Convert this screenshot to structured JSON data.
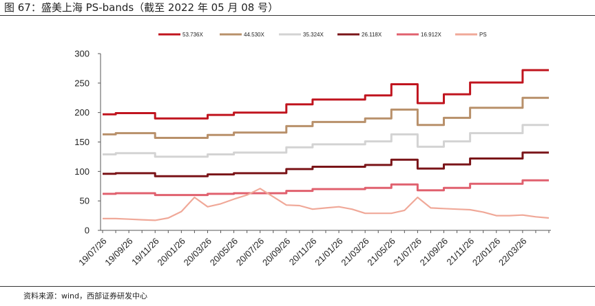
{
  "header": {
    "title": "图 67：盛美上海 PS-bands（截至 2022 年 05 月 08 号）"
  },
  "footer": {
    "source": "资料来源：wind，西部证券研发中心"
  },
  "chart_data": {
    "type": "line",
    "title": "",
    "xlabel": "",
    "ylabel": "",
    "ylim": [
      0,
      300
    ],
    "yticks": [
      0,
      50,
      100,
      150,
      200,
      250,
      300
    ],
    "grid": false,
    "legend_position": "top",
    "x": [
      "19/07/26",
      "19/08/26",
      "19/09/26",
      "19/10/26",
      "19/11/26",
      "19/12/26",
      "20/01/26",
      "20/02/26",
      "20/03/26",
      "20/04/26",
      "20/05/26",
      "20/06/26",
      "20/07/26",
      "20/08/26",
      "20/09/26",
      "20/10/26",
      "20/11/26",
      "20/12/26",
      "21/01/26",
      "21/02/26",
      "21/03/26",
      "21/04/26",
      "21/05/26",
      "21/06/26",
      "21/07/26",
      "21/08/26",
      "21/09/26",
      "21/10/26",
      "21/11/26",
      "21/12/26",
      "22/01/26",
      "22/02/26",
      "22/03/26",
      "22/04/26",
      "22/05/08"
    ],
    "xtick_labels": [
      "19/07/26",
      "19/09/26",
      "19/11/26",
      "20/01/26",
      "20/03/26",
      "20/05/26",
      "20/07/26",
      "20/09/26",
      "20/11/26",
      "21/01/26",
      "21/03/26",
      "21/05/26",
      "21/07/26",
      "21/09/26",
      "21/11/26",
      "22/01/26",
      "22/03/26"
    ],
    "series": [
      {
        "name": "53.736X",
        "color": "#c0141e",
        "step": true,
        "values": [
          197,
          199,
          199,
          199,
          190,
          190,
          190,
          190,
          196,
          196,
          200,
          200,
          200,
          200,
          214,
          214,
          222,
          222,
          222,
          222,
          229,
          229,
          248,
          248,
          216,
          216,
          231,
          231,
          251,
          251,
          251,
          251,
          272,
          272,
          272
        ]
      },
      {
        "name": "44.530X",
        "color": "#b8906a",
        "step": true,
        "values": [
          163,
          165,
          165,
          165,
          157,
          157,
          157,
          157,
          162,
          162,
          166,
          166,
          166,
          166,
          177,
          177,
          184,
          184,
          184,
          184,
          190,
          190,
          205,
          205,
          179,
          179,
          191,
          191,
          208,
          208,
          208,
          208,
          225,
          225,
          225
        ]
      },
      {
        "name": "35.324X",
        "color": "#d3d3d3",
        "step": true,
        "values": [
          129,
          131,
          131,
          131,
          125,
          125,
          125,
          125,
          129,
          129,
          132,
          132,
          132,
          132,
          141,
          141,
          146,
          146,
          146,
          146,
          151,
          151,
          163,
          163,
          142,
          142,
          151,
          151,
          165,
          165,
          165,
          165,
          179,
          179,
          179
        ]
      },
      {
        "name": "26.118X",
        "color": "#7a1418",
        "step": true,
        "values": [
          96,
          97,
          97,
          97,
          92,
          92,
          92,
          92,
          95,
          95,
          97,
          97,
          97,
          97,
          104,
          104,
          108,
          108,
          108,
          108,
          111,
          111,
          120,
          120,
          105,
          105,
          112,
          112,
          122,
          122,
          122,
          122,
          132,
          132,
          132
        ]
      },
      {
        "name": "16.912X",
        "color": "#e0606e",
        "step": true,
        "values": [
          62,
          63,
          63,
          63,
          60,
          60,
          60,
          60,
          62,
          62,
          63,
          63,
          63,
          63,
          67,
          67,
          70,
          70,
          70,
          70,
          72,
          72,
          78,
          78,
          68,
          68,
          72,
          72,
          79,
          79,
          79,
          79,
          85,
          85,
          85
        ]
      },
      {
        "name": "PS",
        "color": "#f0a898",
        "step": false,
        "values": [
          20,
          20,
          19,
          18,
          17,
          21,
          32,
          56,
          40,
          45,
          53,
          60,
          71,
          57,
          43,
          42,
          36,
          38,
          40,
          36,
          29,
          29,
          29,
          34,
          56,
          38,
          37,
          36,
          35,
          31,
          25,
          25,
          26,
          23,
          21
        ]
      }
    ]
  }
}
